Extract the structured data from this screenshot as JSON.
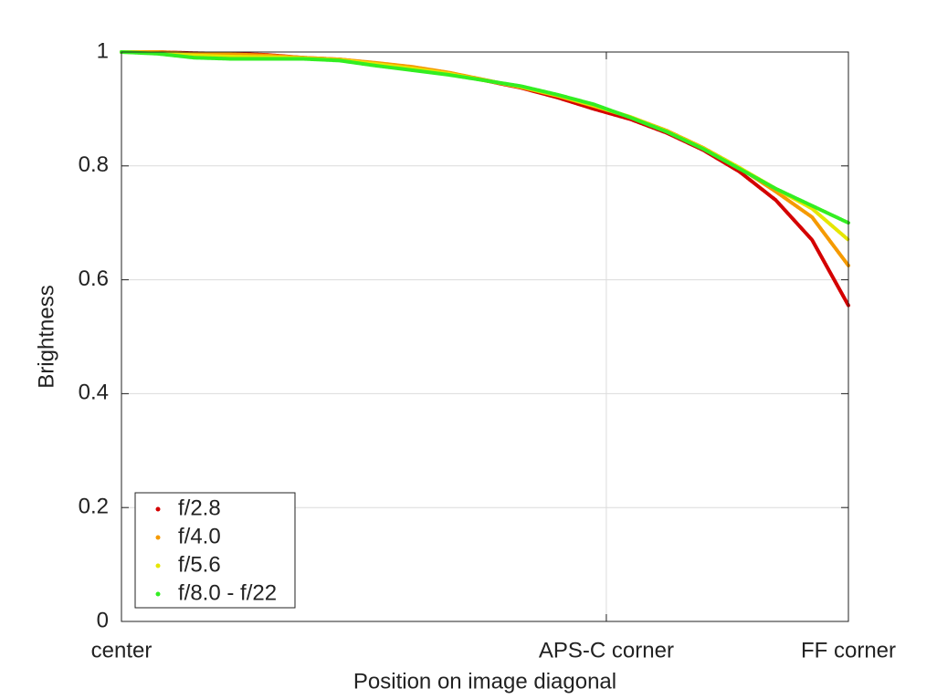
{
  "chart_data": {
    "type": "line",
    "xlabel": "Position on image diagonal",
    "ylabel": "Brightness",
    "xlim": [
      0,
      1
    ],
    "ylim": [
      0,
      1
    ],
    "xticks": [
      {
        "value": 0,
        "label": "center"
      },
      {
        "value": 0.667,
        "label": "APS-C corner"
      },
      {
        "value": 1,
        "label": "FF corner"
      }
    ],
    "yticks": [
      0,
      0.2,
      0.4,
      0.6,
      0.8,
      1
    ],
    "grid": true,
    "legend": "lower left",
    "x": [
      0,
      0.05,
      0.1,
      0.15,
      0.2,
      0.25,
      0.3,
      0.35,
      0.4,
      0.45,
      0.5,
      0.55,
      0.6,
      0.65,
      0.7,
      0.75,
      0.8,
      0.85,
      0.9,
      0.95,
      1.0
    ],
    "series": [
      {
        "name": "f/2.8",
        "color": "#d40000",
        "values": [
          1.0,
          1.0,
          0.998,
          0.997,
          0.995,
          0.99,
          0.987,
          0.98,
          0.972,
          0.962,
          0.95,
          0.937,
          0.92,
          0.9,
          0.882,
          0.858,
          0.828,
          0.79,
          0.74,
          0.67,
          0.555
        ]
      },
      {
        "name": "f/4.0",
        "color": "#f59a00",
        "values": [
          1.0,
          1.0,
          0.997,
          0.996,
          0.994,
          0.99,
          0.987,
          0.981,
          0.974,
          0.964,
          0.951,
          0.938,
          0.923,
          0.905,
          0.886,
          0.862,
          0.832,
          0.797,
          0.755,
          0.71,
          0.625
        ]
      },
      {
        "name": "f/5.6",
        "color": "#e6e600",
        "values": [
          1.0,
          0.998,
          0.994,
          0.992,
          0.991,
          0.989,
          0.986,
          0.979,
          0.971,
          0.962,
          0.95,
          0.939,
          0.924,
          0.906,
          0.886,
          0.861,
          0.831,
          0.797,
          0.76,
          0.725,
          0.67
        ]
      },
      {
        "name": "f/8.0 - f/22",
        "color": "#33ee22",
        "values": [
          1.0,
          0.997,
          0.99,
          0.988,
          0.988,
          0.988,
          0.985,
          0.976,
          0.968,
          0.96,
          0.95,
          0.94,
          0.925,
          0.908,
          0.885,
          0.86,
          0.83,
          0.795,
          0.76,
          0.73,
          0.7
        ]
      }
    ]
  }
}
